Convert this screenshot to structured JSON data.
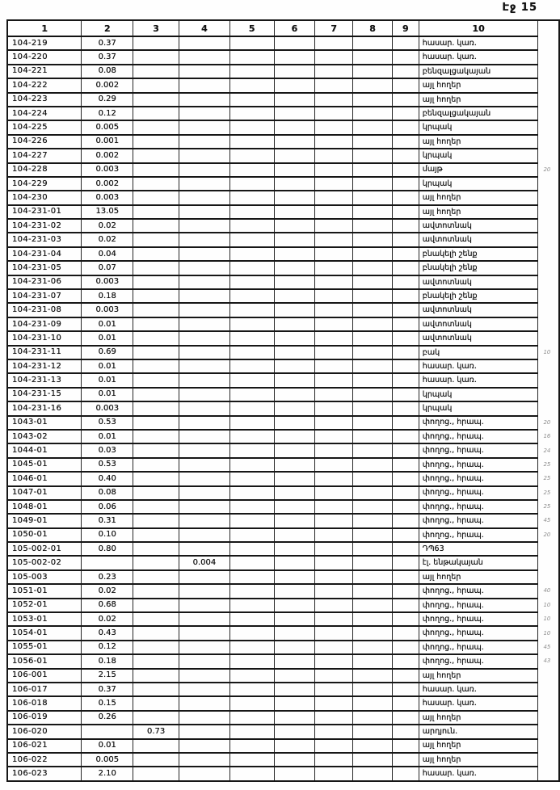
{
  "page": {
    "label": "Էջ 15"
  },
  "table": {
    "headers": [
      "1",
      "2",
      "3",
      "4",
      "5",
      "6",
      "7",
      "8",
      "9",
      "10"
    ],
    "rows": [
      {
        "c1": "104-219",
        "c2": "0.37",
        "c10": "հասար. կառ."
      },
      {
        "c1": "104-220",
        "c2": "0.37",
        "c10": "հասար. կառ."
      },
      {
        "c1": "104-221",
        "c2": "0.08",
        "c10": "բենզալցակայան"
      },
      {
        "c1": "104-222",
        "c2": "0.002",
        "c10": "այլ հողեր"
      },
      {
        "c1": "104-223",
        "c2": "0.29",
        "c10": "այլ հողեր"
      },
      {
        "c1": "104-224",
        "c2": "0.12",
        "c10": "բենզալցակայան"
      },
      {
        "c1": "104-225",
        "c2": "0.005",
        "c10": "կրպակ"
      },
      {
        "c1": "104-226",
        "c2": "0.001",
        "c10": "այլ հողեր"
      },
      {
        "c1": "104-227",
        "c2": "0.002",
        "c10": "կրպակ"
      },
      {
        "c1": "104-228",
        "c2": "0.003",
        "c10": "մայթ",
        "note": "20"
      },
      {
        "c1": "104-229",
        "c2": "0.002",
        "c10": "կրպակ"
      },
      {
        "c1": "104-230",
        "c2": "0.003",
        "c10": "այլ հողեր"
      },
      {
        "c1": "104-231-01",
        "c2": "13.05",
        "c10": "այլ հողեր"
      },
      {
        "c1": "104-231-02",
        "c2": "0.02",
        "c10": "ավտոտնակ"
      },
      {
        "c1": "104-231-03",
        "c2": "0.02",
        "c10": "ավտոտնակ"
      },
      {
        "c1": "104-231-04",
        "c2": "0.04",
        "c10": "բնակելի շենք"
      },
      {
        "c1": "104-231-05",
        "c2": "0.07",
        "c10": "բնակելի շենք"
      },
      {
        "c1": "104-231-06",
        "c2": "0.003",
        "c10": "ավտոտնակ"
      },
      {
        "c1": "104-231-07",
        "c2": "0.18",
        "c10": "բնակելի շենք"
      },
      {
        "c1": "104-231-08",
        "c2": "0.003",
        "c10": "ավտոտնակ"
      },
      {
        "c1": "104-231-09",
        "c2": "0.01",
        "c10": "ավտոտնակ"
      },
      {
        "c1": "104-231-10",
        "c2": "0.01",
        "c10": "ավտոտնակ"
      },
      {
        "c1": "104-231-11",
        "c2": "0.69",
        "c10": "բակ",
        "note": "10"
      },
      {
        "c1": "104-231-12",
        "c2": "0.01",
        "c10": "հասար. կառ."
      },
      {
        "c1": "104-231-13",
        "c2": "0.01",
        "c10": "հասար. կառ."
      },
      {
        "c1": "104-231-15",
        "c2": "0.01",
        "c10": "կրպակ"
      },
      {
        "c1": "104-231-16",
        "c2": "0.003",
        "c10": "կրպակ"
      },
      {
        "c1": "1043-01",
        "c2": "0.53",
        "c10": "փողոց., հրապ.",
        "note": "20"
      },
      {
        "c1": "1043-02",
        "c2": "0.01",
        "c10": "փողոց., հրապ.",
        "note": "16"
      },
      {
        "c1": "1044-01",
        "c2": "0.03",
        "c10": "փողոց., հրապ.",
        "note": "24"
      },
      {
        "c1": "1045-01",
        "c2": "0.53",
        "c10": "փողոց., հրապ.",
        "note": "25"
      },
      {
        "c1": "1046-01",
        "c2": "0.40",
        "c10": "փողոց., հրապ.",
        "note": "25"
      },
      {
        "c1": "1047-01",
        "c2": "0.08",
        "c10": "փողոց., հրապ.",
        "note": "25"
      },
      {
        "c1": "1048-01",
        "c2": "0.06",
        "c10": "փողոց., հրապ.",
        "note": "25"
      },
      {
        "c1": "1049-01",
        "c2": "0.31",
        "c10": "փողոց., հրապ.",
        "note": "45"
      },
      {
        "c1": "1050-01",
        "c2": "0.10",
        "c10": "փողոց., հրապ.",
        "note": "20"
      },
      {
        "c1": "105-002-01",
        "c2": "0.80",
        "c10": "ԴՊ63"
      },
      {
        "c1": "105-002-02",
        "c4": "0.004",
        "c10": "էլ. ենթակայան"
      },
      {
        "c1": "105-003",
        "c2": "0.23",
        "c10": "այլ հողեր"
      },
      {
        "c1": "1051-01",
        "c2": "0.02",
        "c10": "փողոց., հրապ.",
        "note": "40"
      },
      {
        "c1": "1052-01",
        "c2": "0.68",
        "c10": "փողոց., հրապ.",
        "note": "10"
      },
      {
        "c1": "1053-01",
        "c2": "0.02",
        "c10": "փողոց., հրապ.",
        "note": "10"
      },
      {
        "c1": "1054-01",
        "c2": "0.43",
        "c10": "փողոց., հրապ.",
        "note": "10"
      },
      {
        "c1": "1055-01",
        "c2": "0.12",
        "c10": "փողոց., հրապ.",
        "note": "45"
      },
      {
        "c1": "1056-01",
        "c2": "0.18",
        "c10": "փողոց., հրապ.",
        "note": "43"
      },
      {
        "c1": "106-001",
        "c2": "2.15",
        "c10": "այլ հողեր"
      },
      {
        "c1": "106-017",
        "c2": "0.37",
        "c10": "հասար. կառ."
      },
      {
        "c1": "106-018",
        "c2": "0.15",
        "c10": "հասար. կառ."
      },
      {
        "c1": "106-019",
        "c2": "0.26",
        "c10": "այլ հողեր"
      },
      {
        "c1": "106-020",
        "c3": "0.73",
        "c10": "արդյուն."
      },
      {
        "c1": "106-021",
        "c2": "0.01",
        "c10": "այլ հողեր"
      },
      {
        "c1": "106-022",
        "c2": "0.005",
        "c10": "այլ հողեր"
      },
      {
        "c1": "106-023",
        "c2": "2.10",
        "c10": "հասար. կառ."
      }
    ]
  }
}
